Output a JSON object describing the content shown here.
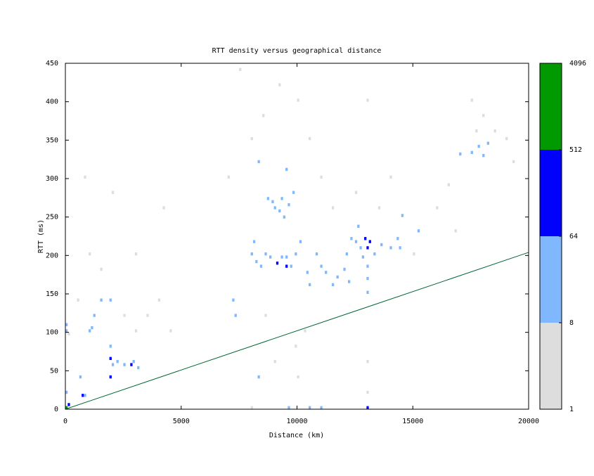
{
  "chart_data": {
    "type": "heatmap",
    "title": "RTT density versus geographical distance",
    "x_label": "Distance (km)",
    "y_label": "RTT (ms)",
    "xlim": [
      0,
      20000
    ],
    "ylim": [
      0,
      450
    ],
    "xticks": [
      0,
      5000,
      10000,
      15000,
      20000
    ],
    "yticks": [
      0,
      50,
      100,
      150,
      200,
      250,
      300,
      350,
      400,
      450
    ],
    "x": [
      0,
      100,
      0,
      0,
      0,
      100,
      700,
      800,
      600,
      1000,
      1100,
      1200,
      1500,
      1900,
      1900,
      1900,
      1900,
      2000,
      2200,
      2500,
      2800,
      2900,
      3100,
      1500,
      1000,
      500,
      2500,
      3000,
      3500,
      4000,
      4200,
      4500,
      2000,
      800,
      3000,
      7200,
      7300,
      7000,
      8000,
      8100,
      8200,
      8400,
      8600,
      8800,
      9100,
      9300,
      9500,
      9500,
      9700,
      9900,
      9000,
      9200,
      9400,
      9600,
      8700,
      8900,
      9300,
      8300,
      9500,
      9800,
      10100,
      10400,
      10500,
      10800,
      11000,
      11200,
      11500,
      11700,
      8500,
      9200,
      10000,
      10500,
      11000,
      11500,
      7500,
      8000,
      8600,
      9000,
      10000,
      10300,
      9600,
      10500,
      11000,
      8000,
      8300,
      9900,
      12300,
      12500,
      12700,
      12900,
      13000,
      13100,
      12600,
      12800,
      13000,
      13300,
      13600,
      14000,
      14300,
      14400,
      12000,
      12100,
      12200,
      13000,
      13000,
      13000,
      13000,
      13000,
      12500,
      13500,
      14000,
      14500,
      13000,
      16000,
      16500,
      17000,
      17500,
      17800,
      18000,
      18200,
      17700,
      18500,
      19000,
      16800,
      17500,
      18000,
      19300,
      15200,
      15000
    ],
    "y": [
      0,
      4,
      20,
      100,
      108,
      96,
      16,
      16,
      40,
      100,
      104,
      120,
      140,
      64,
      40,
      80,
      140,
      56,
      60,
      56,
      56,
      60,
      52,
      180,
      200,
      140,
      120,
      100,
      120,
      140,
      260,
      100,
      280,
      300,
      200,
      140,
      120,
      300,
      200,
      216,
      190,
      184,
      200,
      196,
      188,
      196,
      184,
      196,
      184,
      200,
      260,
      256,
      248,
      264,
      272,
      268,
      272,
      320,
      310,
      280,
      216,
      176,
      160,
      200,
      184,
      176,
      160,
      170,
      380,
      420,
      400,
      350,
      300,
      260,
      440,
      350,
      120,
      60,
      40,
      100,
      0,
      0,
      0,
      0,
      40,
      80,
      220,
      216,
      208,
      220,
      208,
      216,
      236,
      196,
      184,
      200,
      212,
      208,
      220,
      208,
      180,
      200,
      164,
      168,
      150,
      0,
      20,
      60,
      280,
      260,
      300,
      250,
      400,
      260,
      290,
      330,
      332,
      340,
      328,
      344,
      360,
      360,
      350,
      230,
      400,
      380,
      320,
      230,
      200
    ],
    "values": [
      600,
      100,
      20,
      10,
      12,
      5,
      80,
      30,
      10,
      20,
      15,
      10,
      12,
      100,
      100,
      20,
      10,
      30,
      20,
      30,
      100,
      40,
      15,
      4,
      3,
      4,
      5,
      4,
      3,
      5,
      2,
      3,
      2,
      2,
      3,
      20,
      15,
      5,
      20,
      15,
      30,
      20,
      30,
      40,
      100,
      40,
      120,
      40,
      30,
      20,
      20,
      20,
      20,
      20,
      15,
      15,
      25,
      10,
      12,
      10,
      15,
      20,
      15,
      20,
      15,
      12,
      20,
      15,
      3,
      2,
      3,
      4,
      5,
      4,
      2,
      4,
      4,
      3,
      3,
      4,
      20,
      10,
      10,
      5,
      10,
      5,
      30,
      40,
      60,
      130,
      200,
      80,
      20,
      40,
      30,
      30,
      25,
      15,
      12,
      10,
      10,
      15,
      12,
      15,
      10,
      150,
      5,
      4,
      4,
      3,
      3,
      10,
      2,
      3,
      4,
      10,
      15,
      20,
      15,
      10,
      5,
      4,
      3,
      3,
      2,
      4,
      2,
      8,
      3
    ],
    "colorbar": {
      "ticks": [
        1,
        8,
        64,
        512,
        4096
      ],
      "colors": [
        "#dddddd",
        "#80b8ff",
        "#0000ff",
        "#009900"
      ]
    },
    "line": {
      "x": [
        0,
        20000
      ],
      "y": [
        0,
        204
      ],
      "color": "#006633"
    }
  }
}
